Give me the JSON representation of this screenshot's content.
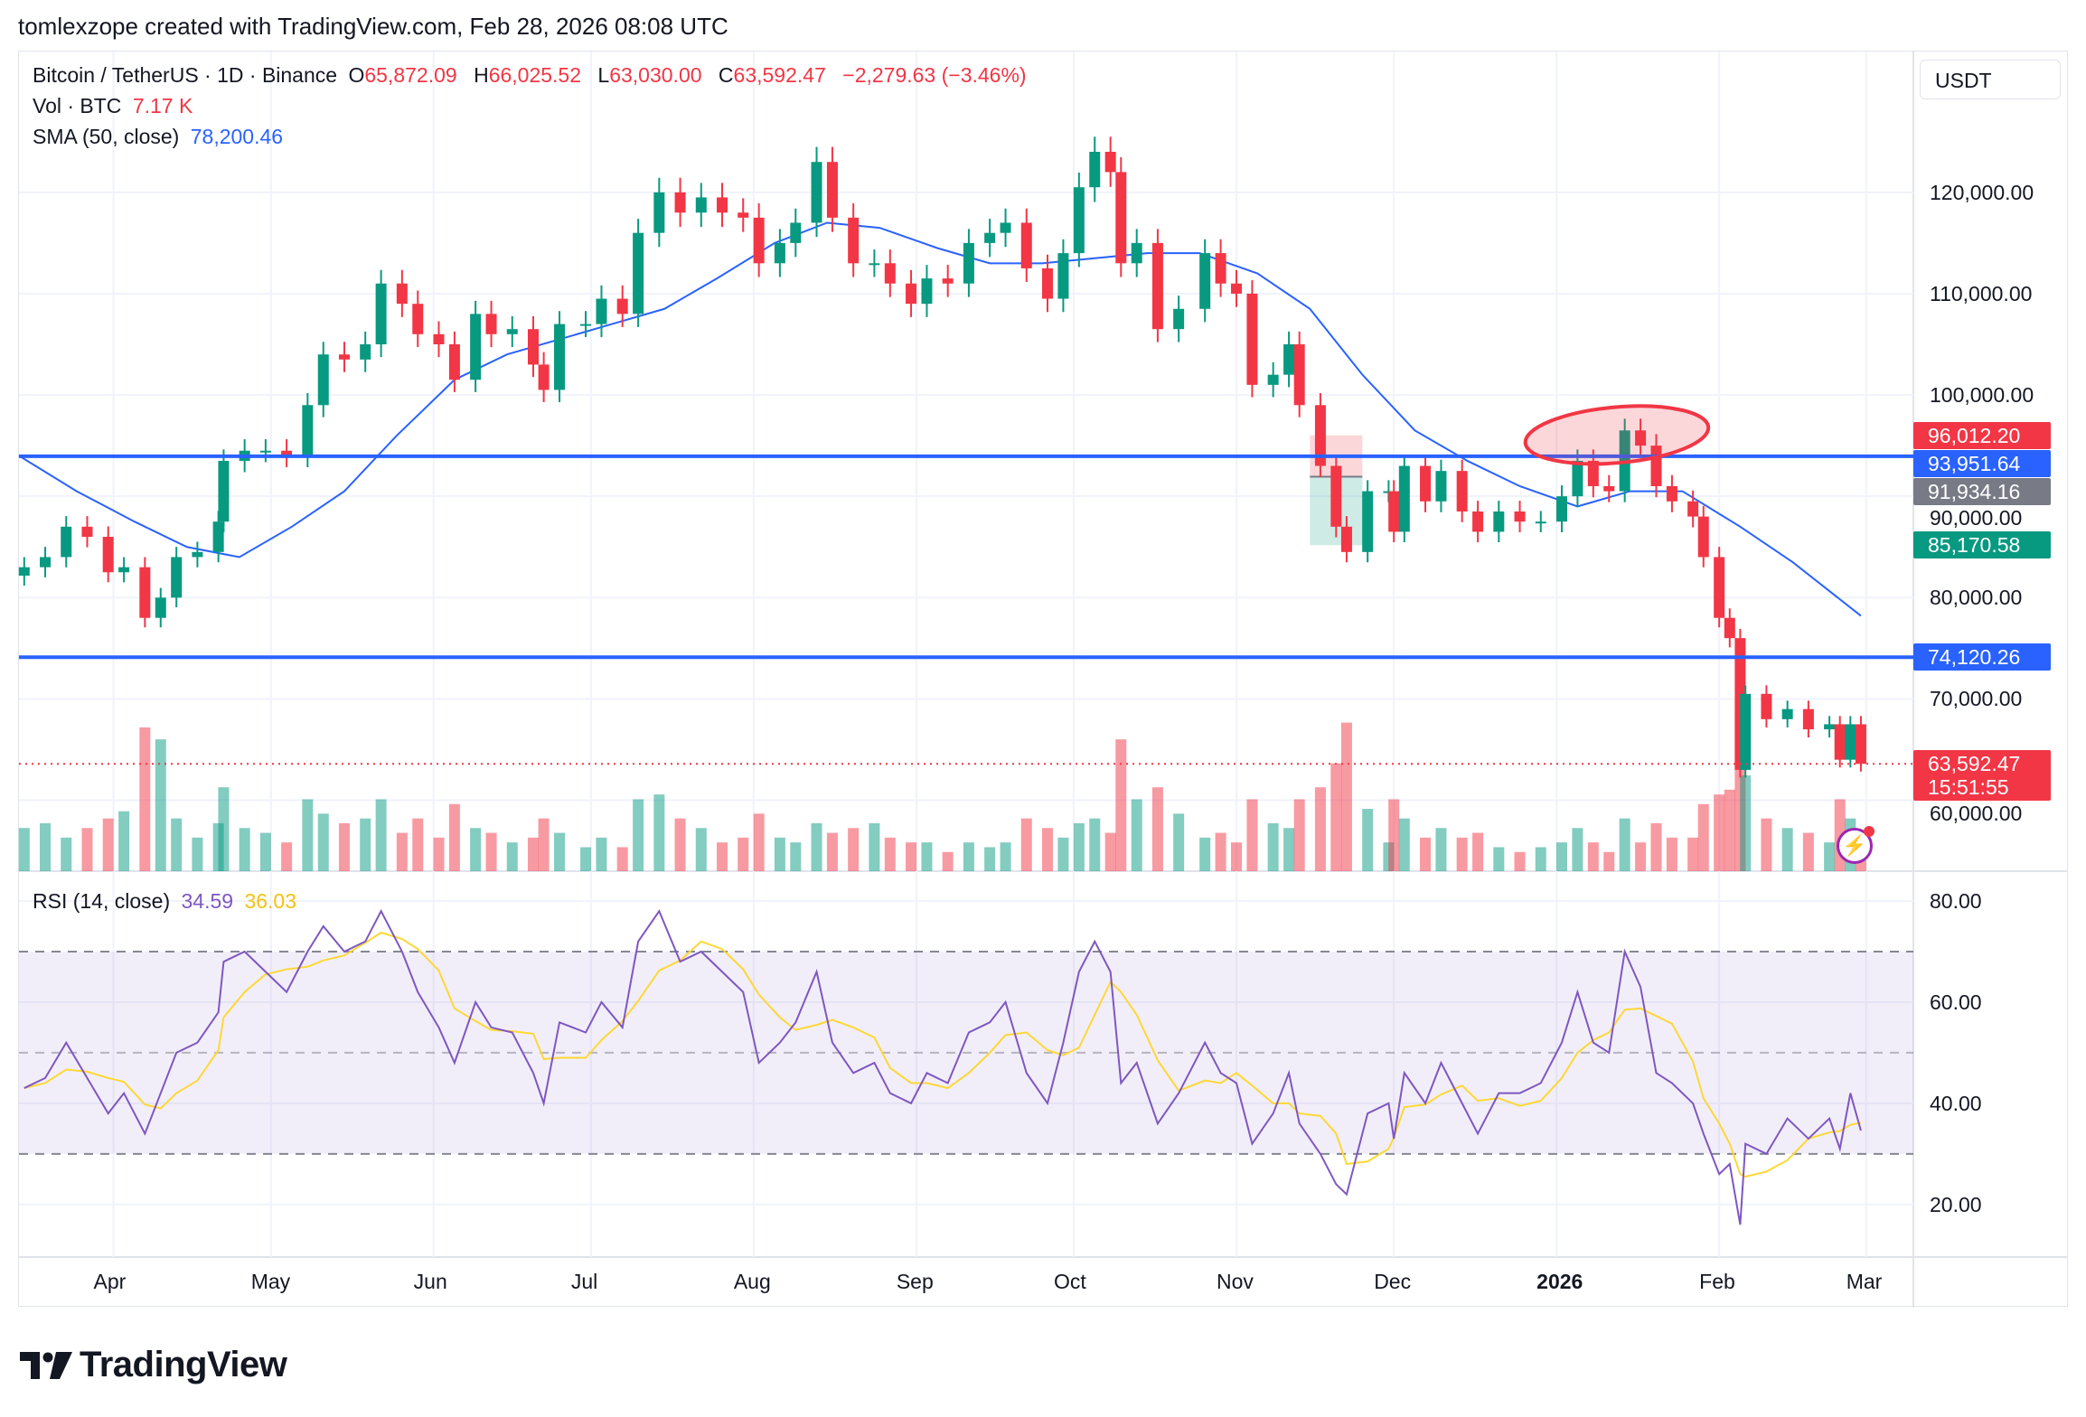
{
  "caption": "tomlexzope created with TradingView.com, Feb 28, 2026 08:08 UTC",
  "legend": {
    "symbol": "Bitcoin / TetherUS · 1D · Binance",
    "o_label": "O",
    "o": "65,872.09",
    "h_label": "H",
    "h": "66,025.52",
    "l_label": "L",
    "l": "63,030.00",
    "c_label": "C",
    "c": "63,592.47",
    "change": "−2,279.63 (−3.46%)",
    "vol_label": "Vol · BTC",
    "vol": "7.17 K",
    "sma_label": "SMA (50, close)",
    "sma": "78,200.46",
    "rsi_label": "RSI (14, close)",
    "rsi": "34.59",
    "rsi_ma": "36.03"
  },
  "currency": "USDT",
  "logo": "TradingView",
  "icons": {
    "logo": "tradingview-logo-icon",
    "bolt": "lightning-icon"
  },
  "colors": {
    "up": "#089981",
    "down": "#f23645",
    "sma": "#2962ff",
    "rsi": "#7e57c2",
    "rsi_ma": "#fdd835",
    "hline": "#2962ff"
  },
  "price_ticks": [
    {
      "value": 120000,
      "label": "120,000.00"
    },
    {
      "value": 110000,
      "label": "110,000.00"
    },
    {
      "value": 100000,
      "label": "100,000.00"
    },
    {
      "value": 90000,
      "label": "90,000.00"
    },
    {
      "value": 80000,
      "label": "80,000.00"
    },
    {
      "value": 70000,
      "label": "70,000.00"
    },
    {
      "value": 60000,
      "label": "60,000.00"
    }
  ],
  "rsi_ticks": [
    {
      "value": 80,
      "label": "80.00"
    },
    {
      "value": 60,
      "label": "60.00"
    },
    {
      "value": 40,
      "label": "40.00"
    },
    {
      "value": 20,
      "label": "20.00"
    }
  ],
  "time_ticks": [
    {
      "date": "2025-04-01",
      "label": "Apr"
    },
    {
      "date": "2025-05-01",
      "label": "May"
    },
    {
      "date": "2025-06-01",
      "label": "Jun"
    },
    {
      "date": "2025-07-01",
      "label": "Jul"
    },
    {
      "date": "2025-08-01",
      "label": "Aug"
    },
    {
      "date": "2025-09-01",
      "label": "Sep"
    },
    {
      "date": "2025-10-01",
      "label": "Oct"
    },
    {
      "date": "2025-11-01",
      "label": "Nov"
    },
    {
      "date": "2025-12-01",
      "label": "Dec"
    },
    {
      "date": "2026-01-01",
      "label": "2026",
      "bold": true
    },
    {
      "date": "2026-02-01",
      "label": "Feb"
    },
    {
      "date": "2026-03-01",
      "label": "Mar"
    }
  ],
  "badges": [
    {
      "price": 96012.2,
      "label": "96,012.20",
      "color": "#f23645"
    },
    {
      "price": 93951.64,
      "label": "93,951.64",
      "color": "#2962ff"
    },
    {
      "price": 91934.16,
      "label": "91,934.16",
      "color": "#787b86"
    },
    {
      "price": 85170.58,
      "label": "85,170.58",
      "color": "#089981"
    },
    {
      "price": 74120.26,
      "label": "74,120.26",
      "color": "#2962ff"
    },
    {
      "price": 63592.47,
      "label": "63,592.47",
      "color": "#f23645",
      "sub": "15:51:55"
    }
  ],
  "chart_data": {
    "type": "candlestick",
    "title": "Bitcoin / TetherUS · 1D · Binance",
    "xlim": [
      "2025-03-14",
      "2026-03-10"
    ],
    "ylim": [
      53000,
      133900
    ],
    "rsi_ylim": [
      9.6,
      85.9
    ],
    "grid": true,
    "x": [
      "2025-03-15",
      "2025-03-19",
      "2025-03-23",
      "2025-03-27",
      "2025-03-31",
      "2025-04-03",
      "2025-04-07",
      "2025-04-10",
      "2025-04-13",
      "2025-04-17",
      "2025-04-21",
      "2025-04-22",
      "2025-04-26",
      "2025-04-30",
      "2025-05-04",
      "2025-05-08",
      "2025-05-11",
      "2025-05-15",
      "2025-05-19",
      "2025-05-22",
      "2025-05-26",
      "2025-05-29",
      "2025-06-02",
      "2025-06-05",
      "2025-06-09",
      "2025-06-12",
      "2025-06-16",
      "2025-06-20",
      "2025-06-22",
      "2025-06-25",
      "2025-06-30",
      "2025-07-03",
      "2025-07-07",
      "2025-07-10",
      "2025-07-14",
      "2025-07-18",
      "2025-07-22",
      "2025-07-26",
      "2025-07-30",
      "2025-08-02",
      "2025-08-06",
      "2025-08-09",
      "2025-08-13",
      "2025-08-16",
      "2025-08-20",
      "2025-08-24",
      "2025-08-27",
      "2025-08-31",
      "2025-09-03",
      "2025-09-07",
      "2025-09-11",
      "2025-09-15",
      "2025-09-18",
      "2025-09-22",
      "2025-09-26",
      "2025-09-29",
      "2025-10-02",
      "2025-10-05",
      "2025-10-08",
      "2025-10-10",
      "2025-10-13",
      "2025-10-17",
      "2025-10-21",
      "2025-10-26",
      "2025-10-29",
      "2025-11-01",
      "2025-11-04",
      "2025-11-08",
      "2025-11-11",
      "2025-11-13",
      "2025-11-17",
      "2025-11-20",
      "2025-11-22",
      "2025-11-26",
      "2025-11-30",
      "2025-12-01",
      "2025-12-03",
      "2025-12-07",
      "2025-12-10",
      "2025-12-14",
      "2025-12-17",
      "2025-12-21",
      "2025-12-25",
      "2025-12-29",
      "2026-01-02",
      "2026-01-05",
      "2026-01-08",
      "2026-01-11",
      "2026-01-14",
      "2026-01-17",
      "2026-01-20",
      "2026-01-23",
      "2026-01-27",
      "2026-01-29",
      "2026-02-01",
      "2026-02-03",
      "2026-02-05",
      "2026-02-06",
      "2026-02-10",
      "2026-02-14",
      "2026-02-18",
      "2026-02-22",
      "2026-02-24",
      "2026-02-26",
      "2026-02-28"
    ],
    "close": [
      83000,
      84000,
      87000,
      86000,
      82500,
      83000,
      78000,
      80000,
      84000,
      84500,
      87500,
      93500,
      94500,
      94500,
      94000,
      99000,
      104000,
      103500,
      105000,
      111000,
      109000,
      106000,
      105000,
      101500,
      108000,
      106000,
      106500,
      103000,
      100500,
      107000,
      107000,
      109500,
      108000,
      116000,
      120000,
      118000,
      119500,
      118000,
      117500,
      113000,
      115000,
      117000,
      123000,
      117500,
      113000,
      113000,
      111000,
      109000,
      111500,
      111000,
      115000,
      116000,
      117000,
      112500,
      109500,
      114000,
      120500,
      124000,
      122000,
      113000,
      115000,
      106500,
      108500,
      114000,
      111000,
      110000,
      101000,
      102000,
      105000,
      99000,
      93000,
      87000,
      84500,
      90500,
      90500,
      86500,
      93000,
      89500,
      92500,
      88500,
      86500,
      88500,
      87500,
      87500,
      90000,
      93500,
      91000,
      90500,
      96500,
      95000,
      91000,
      89500,
      88000,
      84000,
      78000,
      76000,
      63000,
      70500,
      68000,
      69000,
      67000,
      67500,
      64000,
      67500,
      63592.47
    ],
    "volume_kbtc": [
      18,
      20,
      14,
      18,
      22,
      25,
      60,
      55,
      22,
      14,
      20,
      35,
      18,
      16,
      12,
      30,
      24,
      20,
      22,
      30,
      16,
      22,
      14,
      28,
      18,
      16,
      12,
      14,
      22,
      16,
      10,
      14,
      10,
      30,
      32,
      22,
      18,
      12,
      14,
      24,
      14,
      12,
      20,
      16,
      18,
      20,
      14,
      12,
      12,
      8,
      12,
      10,
      12,
      22,
      18,
      14,
      20,
      22,
      16,
      55,
      30,
      35,
      24,
      14,
      16,
      12,
      30,
      20,
      18,
      30,
      35,
      45,
      62,
      26,
      12,
      30,
      22,
      14,
      18,
      14,
      16,
      10,
      8,
      10,
      12,
      18,
      12,
      8,
      22,
      12,
      20,
      14,
      14,
      28,
      32,
      34,
      66,
      40,
      22,
      18,
      16,
      12,
      30,
      22,
      7.17
    ],
    "rsi": [
      43,
      45,
      52,
      45,
      38,
      42,
      34,
      42,
      50,
      52,
      58,
      68,
      70,
      66,
      62,
      70,
      75,
      70,
      72,
      78,
      70,
      62,
      55,
      48,
      60,
      55,
      54,
      46,
      40,
      56,
      54,
      60,
      55,
      72,
      78,
      68,
      70,
      66,
      62,
      48,
      52,
      56,
      66,
      52,
      46,
      48,
      42,
      40,
      46,
      44,
      54,
      56,
      60,
      46,
      40,
      52,
      66,
      72,
      66,
      44,
      48,
      36,
      42,
      52,
      46,
      44,
      32,
      38,
      46,
      36,
      30,
      24,
      22,
      38,
      40,
      33,
      46,
      40,
      48,
      40,
      34,
      42,
      42,
      44,
      52,
      62,
      52,
      50,
      70,
      63,
      46,
      44,
      40,
      34,
      26,
      28,
      16,
      32,
      30,
      37,
      33,
      37,
      31,
      42,
      34.59
    ],
    "sma50": {
      "x": [
        "2025-03-14",
        "2025-03-25",
        "2025-04-05",
        "2025-04-15",
        "2025-04-25",
        "2025-05-05",
        "2025-05-15",
        "2025-05-25",
        "2025-06-05",
        "2025-06-15",
        "2025-06-25",
        "2025-07-05",
        "2025-07-15",
        "2025-07-25",
        "2025-08-05",
        "2025-08-15",
        "2025-08-25",
        "2025-09-05",
        "2025-09-15",
        "2025-09-25",
        "2025-10-05",
        "2025-10-15",
        "2025-10-25",
        "2025-11-05",
        "2025-11-15",
        "2025-11-25",
        "2025-12-05",
        "2025-12-15",
        "2025-12-25",
        "2026-01-05",
        "2026-01-15",
        "2026-01-25",
        "2026-02-05",
        "2026-02-15",
        "2026-02-28"
      ],
      "values": [
        94000,
        90500,
        87500,
        85000,
        84000,
        87000,
        90500,
        96000,
        101500,
        104000,
        105500,
        107000,
        108500,
        111500,
        115000,
        117000,
        116500,
        114500,
        113000,
        113000,
        113500,
        114000,
        114000,
        112000,
        108500,
        102000,
        96500,
        93500,
        91000,
        89000,
        90500,
        90500,
        87000,
        83500,
        78200.46
      ]
    },
    "rsi_levels": {
      "upper": 70,
      "middle": 50,
      "lower": 30
    },
    "drawings": [
      {
        "type": "hline",
        "price": 93951.64
      },
      {
        "type": "hline",
        "price": 74120.26
      },
      {
        "type": "ellipse",
        "x": [
          "2025-12-26",
          "2026-01-30"
        ],
        "price": [
          93300,
          98800
        ]
      },
      {
        "type": "long-position",
        "x": [
          "2025-11-15",
          "2025-11-25"
        ],
        "target": 96012.2,
        "entry": 91934.16,
        "stop": 85170.58
      }
    ],
    "last_price": 63592.47
  }
}
